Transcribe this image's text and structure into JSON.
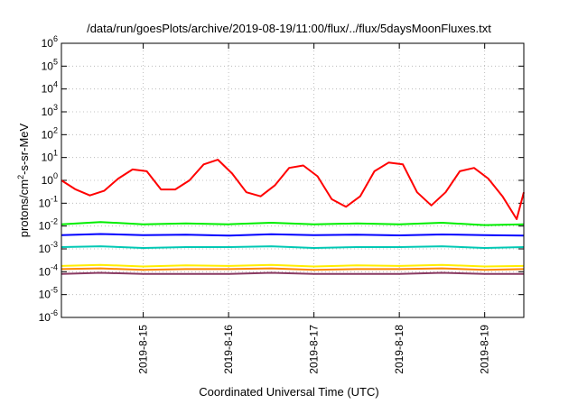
{
  "chart_data": {
    "type": "line",
    "title": "/data/run/goesPlots/archive/2019-08-19/11:00/flux/../flux/5daysMoonFluxes.txt",
    "xlabel": "Coordinated Universal Time (UTC)",
    "ylabel_prefix": "protons/cm",
    "ylabel_exp": "2",
    "ylabel_suffix": "-s-sr-MeV",
    "y_scale": "log",
    "ylim": [
      1e-06,
      1000000.0
    ],
    "y_ticks": [
      {
        "value": 1e-06,
        "base": "10",
        "exp": "-6"
      },
      {
        "value": 1e-05,
        "base": "10",
        "exp": "-5"
      },
      {
        "value": 0.0001,
        "base": "10",
        "exp": "-4"
      },
      {
        "value": 0.001,
        "base": "10",
        "exp": "-3"
      },
      {
        "value": 0.01,
        "base": "10",
        "exp": "-2"
      },
      {
        "value": 0.1,
        "base": "10",
        "exp": "-1"
      },
      {
        "value": 1.0,
        "base": "10",
        "exp": "0"
      },
      {
        "value": 10.0,
        "base": "10",
        "exp": "1"
      },
      {
        "value": 100.0,
        "base": "10",
        "exp": "2"
      },
      {
        "value": 1000.0,
        "base": "10",
        "exp": "3"
      },
      {
        "value": 10000.0,
        "base": "10",
        "exp": "4"
      },
      {
        "value": 100000.0,
        "base": "10",
        "exp": "5"
      },
      {
        "value": 1000000.0,
        "base": "10",
        "exp": "6"
      }
    ],
    "xlim": [
      "2019-08-14 01:00",
      "2019-08-19 11:00"
    ],
    "x_ticks": [
      {
        "date": "2019-08-15",
        "label": "2019-8-15"
      },
      {
        "date": "2019-08-16",
        "label": "2019-8-16"
      },
      {
        "date": "2019-08-17",
        "label": "2019-8-17"
      },
      {
        "date": "2019-08-18",
        "label": "2019-8-18"
      },
      {
        "date": "2019-08-19",
        "label": "2019-8-19"
      }
    ],
    "grid": true,
    "series": [
      {
        "color": "#ff0000",
        "x": [
          "2019-08-14 01:00",
          "2019-08-14 05:00",
          "2019-08-14 09:00",
          "2019-08-14 13:00",
          "2019-08-14 17:00",
          "2019-08-14 21:00",
          "2019-08-15 01:00",
          "2019-08-15 05:00",
          "2019-08-15 09:00",
          "2019-08-15 13:00",
          "2019-08-15 17:00",
          "2019-08-15 21:00",
          "2019-08-16 01:00",
          "2019-08-16 05:00",
          "2019-08-16 09:00",
          "2019-08-16 13:00",
          "2019-08-16 17:00",
          "2019-08-16 21:00",
          "2019-08-17 01:00",
          "2019-08-17 05:00",
          "2019-08-17 09:00",
          "2019-08-17 13:00",
          "2019-08-17 17:00",
          "2019-08-17 21:00",
          "2019-08-18 01:00",
          "2019-08-18 05:00",
          "2019-08-18 09:00",
          "2019-08-18 13:00",
          "2019-08-18 17:00",
          "2019-08-18 21:00",
          "2019-08-19 01:00",
          "2019-08-19 05:00",
          "2019-08-19 09:00",
          "2019-08-19 11:00"
        ],
        "y": [
          1.0,
          0.4,
          0.22,
          0.35,
          1.2,
          3.0,
          2.5,
          0.4,
          0.4,
          1.0,
          5.0,
          8.0,
          2.0,
          0.3,
          0.2,
          0.6,
          3.5,
          4.5,
          1.5,
          0.15,
          0.07,
          0.2,
          2.5,
          6.0,
          5.0,
          0.3,
          0.08,
          0.3,
          2.5,
          3.5,
          1.2,
          0.2,
          0.02,
          0.3
        ]
      },
      {
        "color": "#00ee00",
        "x": [
          "2019-08-14 01:00",
          "2019-08-14 12:00",
          "2019-08-15 00:00",
          "2019-08-15 12:00",
          "2019-08-16 00:00",
          "2019-08-16 12:00",
          "2019-08-17 00:00",
          "2019-08-17 12:00",
          "2019-08-18 00:00",
          "2019-08-18 12:00",
          "2019-08-19 00:00",
          "2019-08-19 11:00"
        ],
        "y": [
          0.012,
          0.015,
          0.012,
          0.013,
          0.012,
          0.014,
          0.012,
          0.013,
          0.012,
          0.014,
          0.011,
          0.012
        ]
      },
      {
        "color": "#0000ff",
        "x": [
          "2019-08-14 01:00",
          "2019-08-14 12:00",
          "2019-08-15 00:00",
          "2019-08-15 12:00",
          "2019-08-16 00:00",
          "2019-08-16 12:00",
          "2019-08-17 00:00",
          "2019-08-17 12:00",
          "2019-08-18 00:00",
          "2019-08-18 12:00",
          "2019-08-19 00:00",
          "2019-08-19 11:00"
        ],
        "y": [
          0.004,
          0.0045,
          0.004,
          0.0042,
          0.0038,
          0.0044,
          0.004,
          0.0042,
          0.0039,
          0.0043,
          0.004,
          0.0038
        ]
      },
      {
        "color": "#00c8b4",
        "x": [
          "2019-08-14 01:00",
          "2019-08-14 12:00",
          "2019-08-15 00:00",
          "2019-08-15 12:00",
          "2019-08-16 00:00",
          "2019-08-16 12:00",
          "2019-08-17 00:00",
          "2019-08-17 12:00",
          "2019-08-18 00:00",
          "2019-08-18 12:00",
          "2019-08-19 00:00",
          "2019-08-19 11:00"
        ],
        "y": [
          0.0012,
          0.0013,
          0.0011,
          0.0012,
          0.0012,
          0.0013,
          0.0011,
          0.0012,
          0.0012,
          0.0013,
          0.0011,
          0.0012
        ]
      },
      {
        "color": "#ffee00",
        "x": [
          "2019-08-14 01:00",
          "2019-08-14 12:00",
          "2019-08-15 00:00",
          "2019-08-15 12:00",
          "2019-08-16 00:00",
          "2019-08-16 12:00",
          "2019-08-17 00:00",
          "2019-08-17 12:00",
          "2019-08-18 00:00",
          "2019-08-18 12:00",
          "2019-08-19 00:00",
          "2019-08-19 11:00"
        ],
        "y": [
          0.00018,
          0.0002,
          0.00017,
          0.00019,
          0.00018,
          0.0002,
          0.00017,
          0.00019,
          0.00018,
          0.0002,
          0.00017,
          0.00018
        ]
      },
      {
        "color": "#ff8800",
        "x": [
          "2019-08-14 01:00",
          "2019-08-14 12:00",
          "2019-08-15 00:00",
          "2019-08-15 12:00",
          "2019-08-16 00:00",
          "2019-08-16 12:00",
          "2019-08-17 00:00",
          "2019-08-17 12:00",
          "2019-08-18 00:00",
          "2019-08-18 12:00",
          "2019-08-19 00:00",
          "2019-08-19 11:00"
        ],
        "y": [
          0.00013,
          0.00014,
          0.00012,
          0.00013,
          0.00013,
          0.00014,
          0.00012,
          0.00013,
          0.00013,
          0.00014,
          0.00012,
          0.00013
        ]
      },
      {
        "color": "#8b3a62",
        "x": [
          "2019-08-14 01:00",
          "2019-08-14 12:00",
          "2019-08-15 00:00",
          "2019-08-15 12:00",
          "2019-08-16 00:00",
          "2019-08-16 12:00",
          "2019-08-17 00:00",
          "2019-08-17 12:00",
          "2019-08-18 00:00",
          "2019-08-18 12:00",
          "2019-08-19 00:00",
          "2019-08-19 11:00"
        ],
        "y": [
          8e-05,
          9e-05,
          8e-05,
          8e-05,
          8e-05,
          9e-05,
          8e-05,
          8e-05,
          8e-05,
          9e-05,
          8e-05,
          8e-05
        ]
      }
    ]
  }
}
